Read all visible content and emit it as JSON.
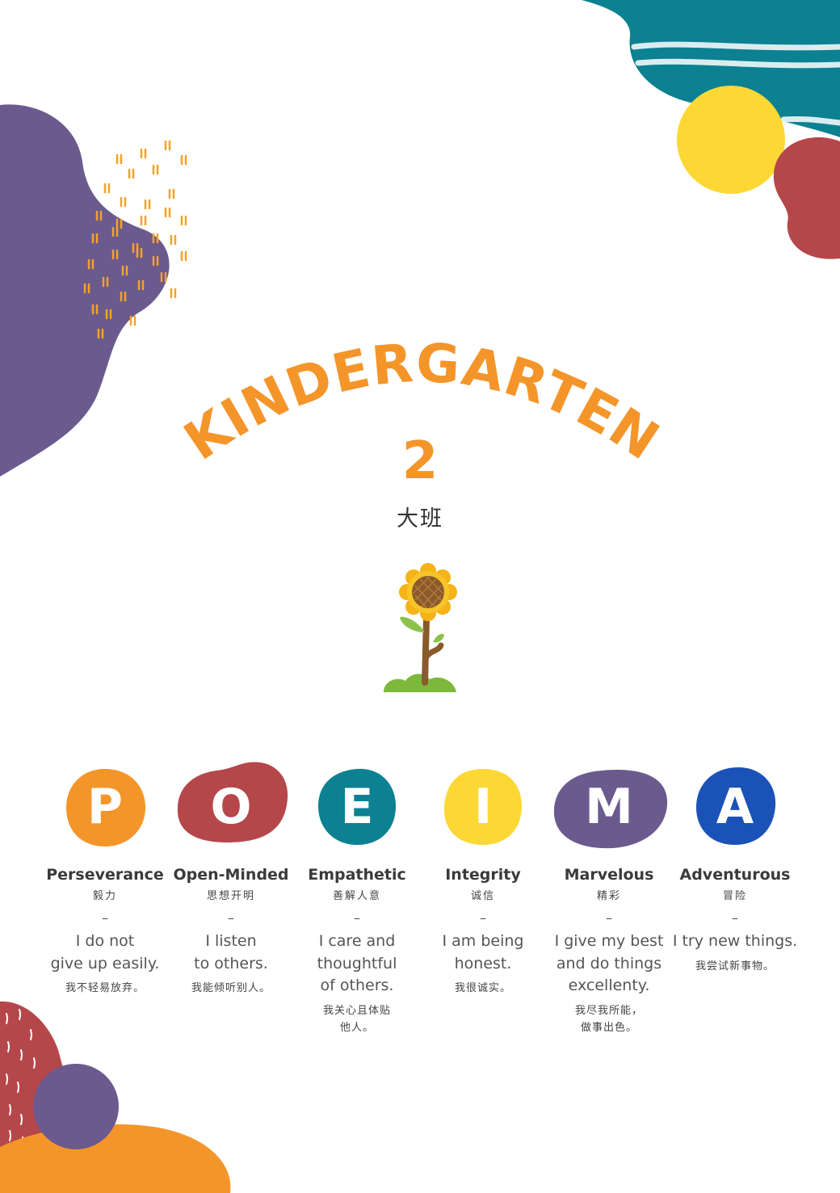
{
  "title": "KINDERGARTEN",
  "subtitle": "2",
  "chinese_title": "大班",
  "colors": {
    "orange": "#f4952a",
    "red": "#b5474a",
    "teal": "#0b8192",
    "yellow": "#fdd835",
    "purple": "#6b5a8e",
    "blue": "#1b52b8"
  },
  "illustration": "sunflower-icon",
  "values": [
    {
      "letter": "P",
      "name": "Perseverance",
      "zh": "毅力",
      "dash": "–",
      "en": "I do not\ngive up easily.",
      "zh_desc": "我不轻易放弃。",
      "color": "#f4952a"
    },
    {
      "letter": "O",
      "name": "Open-Minded",
      "zh": "思想开明",
      "dash": "–",
      "en": "I listen\nto others.",
      "zh_desc": "我能倾听别人。",
      "color": "#b5474a"
    },
    {
      "letter": "E",
      "name": "Empathetic",
      "zh": "善解人意",
      "dash": "–",
      "en": "I care and\nthoughtful\nof others.",
      "zh_desc": "我关心且体贴\n他人。",
      "color": "#0b8192"
    },
    {
      "letter": "I",
      "name": "Integrity",
      "zh": "诚信",
      "dash": "–",
      "en": "I am being\nhonest.",
      "zh_desc": "我很诚实。",
      "color": "#fdd835"
    },
    {
      "letter": "M",
      "name": "Marvelous",
      "zh": "精彩",
      "dash": "–",
      "en": "I give my best\nand do things\nexcellenty.",
      "zh_desc": "我尽我所能，\n做事出色。",
      "color": "#6b5a8e"
    },
    {
      "letter": "A",
      "name": "Adventurous",
      "zh": "冒险",
      "dash": "–",
      "en": "I try new things.",
      "zh_desc": "我尝试新事物。",
      "color": "#1b52b8"
    }
  ]
}
